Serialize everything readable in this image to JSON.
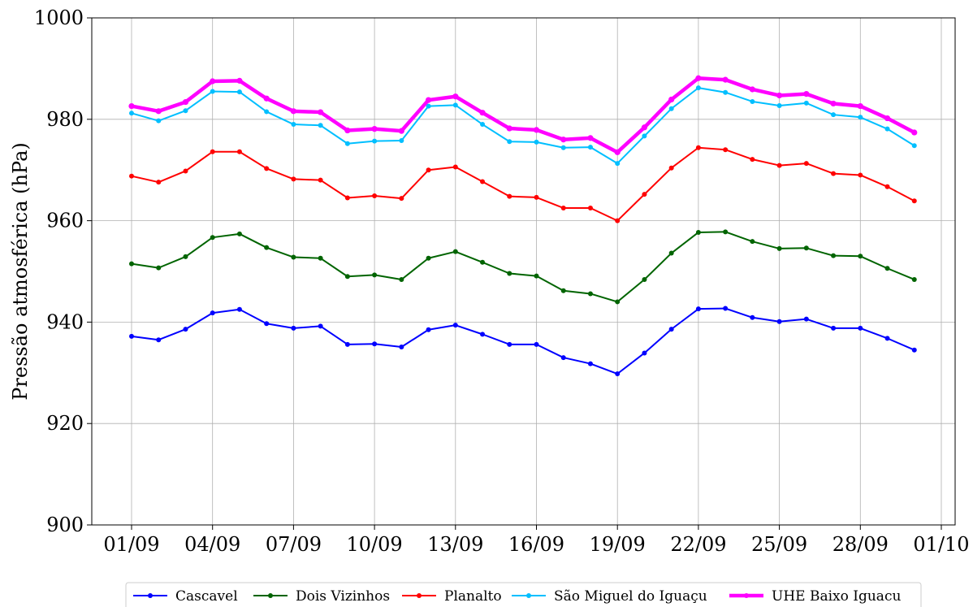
{
  "chart_data": {
    "type": "line",
    "title": "",
    "xlabel": "",
    "ylabel": "Pressão atmosférica (hPa)",
    "ylim": [
      900,
      1000
    ],
    "yticks": [
      900,
      920,
      940,
      960,
      980,
      1000
    ],
    "ytick_labels": [
      "900",
      "920",
      "940",
      "960",
      "980",
      "1000"
    ],
    "xlim": [
      "2023-08-30",
      "2023-10-01"
    ],
    "xticks": [
      "2023-09-01",
      "2023-09-04",
      "2023-09-07",
      "2023-09-10",
      "2023-09-13",
      "2023-09-16",
      "2023-09-19",
      "2023-09-22",
      "2023-09-25",
      "2023-09-28",
      "2023-10-01"
    ],
    "xtick_labels": [
      "01/09",
      "04/09",
      "07/09",
      "10/09",
      "13/09",
      "16/09",
      "19/09",
      "22/09",
      "25/09",
      "28/09",
      "01/10"
    ],
    "grid": true,
    "legend_position": "bottom",
    "x": [
      "2023-09-01",
      "2023-09-02",
      "2023-09-03",
      "2023-09-04",
      "2023-09-05",
      "2023-09-06",
      "2023-09-07",
      "2023-09-08",
      "2023-09-09",
      "2023-09-10",
      "2023-09-11",
      "2023-09-12",
      "2023-09-13",
      "2023-09-14",
      "2023-09-15",
      "2023-09-16",
      "2023-09-17",
      "2023-09-18",
      "2023-09-19",
      "2023-09-20",
      "2023-09-21",
      "2023-09-22",
      "2023-09-23",
      "2023-09-24",
      "2023-09-25",
      "2023-09-26",
      "2023-09-27",
      "2023-09-28",
      "2023-09-29",
      "2023-09-30"
    ],
    "series": [
      {
        "name": "Cascavel",
        "color": "#0000ff",
        "line_width": 2,
        "values": [
          937.2,
          936.5,
          938.6,
          941.8,
          942.5,
          939.7,
          938.8,
          939.2,
          935.6,
          935.7,
          935.1,
          938.5,
          939.4,
          937.6,
          935.6,
          935.6,
          933.0,
          931.8,
          929.8,
          933.9,
          938.6,
          942.6,
          942.7,
          940.9,
          940.1,
          940.6,
          938.8,
          938.8,
          936.8,
          934.5
        ]
      },
      {
        "name": "Dois Vizinhos",
        "color": "#006400",
        "line_width": 2,
        "values": [
          951.5,
          950.7,
          952.9,
          956.7,
          957.4,
          954.7,
          952.8,
          952.6,
          949.0,
          949.3,
          948.4,
          952.6,
          953.9,
          951.8,
          949.6,
          949.1,
          946.2,
          945.6,
          944.0,
          948.4,
          953.6,
          957.7,
          957.8,
          955.9,
          954.5,
          954.6,
          953.1,
          953.0,
          950.6,
          948.4
        ]
      },
      {
        "name": "Planalto",
        "color": "#ff0000",
        "line_width": 2,
        "values": [
          968.8,
          967.6,
          969.8,
          973.6,
          973.6,
          970.3,
          968.2,
          968.0,
          964.5,
          964.9,
          964.4,
          970.0,
          970.6,
          967.7,
          964.8,
          964.6,
          962.5,
          962.5,
          960.0,
          965.2,
          970.4,
          974.4,
          974.0,
          972.1,
          970.9,
          971.3,
          969.3,
          969.0,
          966.7,
          963.9
        ]
      },
      {
        "name": "São Miguel do Iguaçu",
        "color": "#00bfff",
        "line_width": 2,
        "values": [
          981.2,
          979.7,
          981.7,
          985.5,
          985.4,
          981.5,
          979.0,
          978.8,
          975.2,
          975.7,
          975.8,
          982.6,
          982.8,
          979.0,
          975.6,
          975.5,
          974.4,
          974.5,
          971.3,
          976.7,
          982.1,
          986.2,
          985.3,
          983.5,
          982.7,
          983.2,
          980.9,
          980.4,
          978.1,
          974.8
        ]
      },
      {
        "name": "UHE Baixo Iguacu",
        "color": "#ff00ff",
        "line_width": 4.5,
        "values": [
          982.6,
          981.6,
          983.4,
          987.5,
          987.6,
          984.1,
          981.6,
          981.4,
          977.8,
          978.1,
          977.7,
          983.8,
          984.5,
          981.3,
          978.2,
          977.9,
          976.0,
          976.3,
          973.5,
          978.4,
          983.9,
          988.1,
          987.8,
          985.9,
          984.7,
          985.0,
          983.1,
          982.6,
          980.2,
          977.4
        ]
      }
    ]
  }
}
